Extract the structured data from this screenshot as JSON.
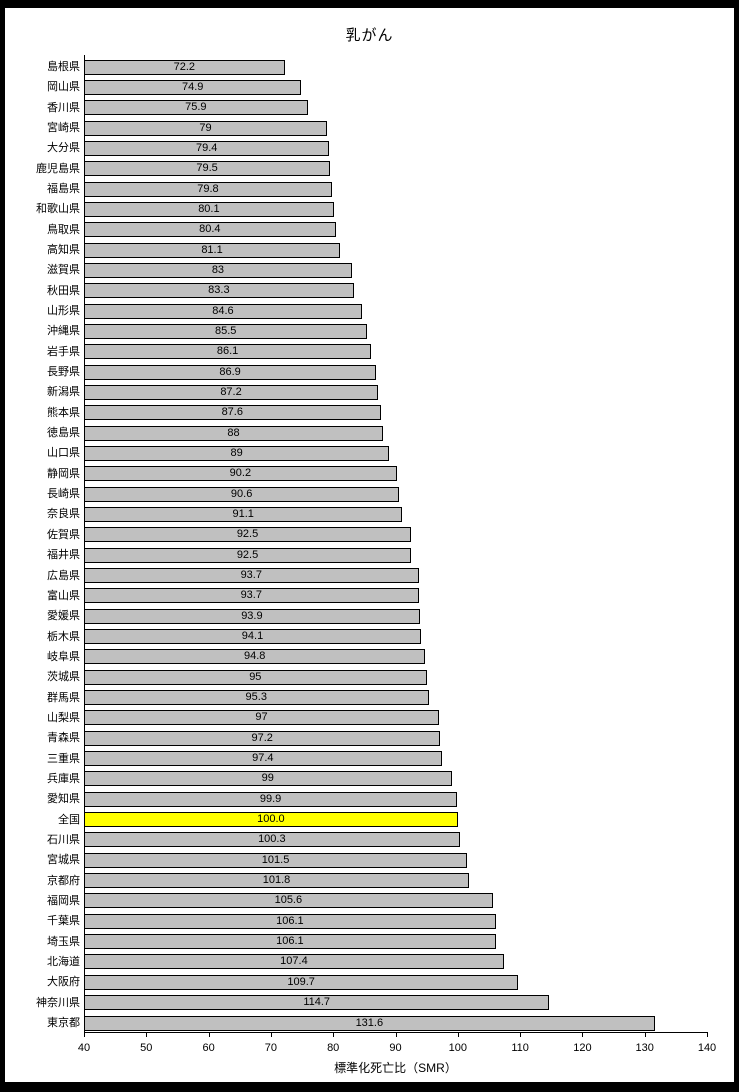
{
  "chart_data": {
    "type": "bar",
    "orientation": "horizontal",
    "title": "乳がん",
    "xlabel": "標準化死亡比（SMR）",
    "xlim": [
      40,
      140
    ],
    "xticks": [
      40,
      50,
      60,
      70,
      80,
      90,
      100,
      110,
      120,
      130,
      140
    ],
    "grid": "off",
    "legend": "none",
    "bar_color": "#c0c0c0",
    "highlight_color": "#ffff00",
    "highlight_category": "全国",
    "highlight_index": 37,
    "categories": [
      "島根県",
      "岡山県",
      "香川県",
      "宮崎県",
      "大分県",
      "鹿児島県",
      "福島県",
      "和歌山県",
      "鳥取県",
      "高知県",
      "滋賀県",
      "秋田県",
      "山形県",
      "沖縄県",
      "岩手県",
      "長野県",
      "新潟県",
      "熊本県",
      "徳島県",
      "山口県",
      "静岡県",
      "長崎県",
      "奈良県",
      "佐賀県",
      "福井県",
      "広島県",
      "富山県",
      "愛媛県",
      "栃木県",
      "岐阜県",
      "茨城県",
      "群馬県",
      "山梨県",
      "青森県",
      "三重県",
      "兵庫県",
      "愛知県",
      "全国",
      "石川県",
      "宮城県",
      "京都府",
      "福岡県",
      "千葉県",
      "埼玉県",
      "北海道",
      "大阪府",
      "神奈川県",
      "東京都"
    ],
    "values": [
      72.2,
      74.9,
      75.9,
      79,
      79.4,
      79.5,
      79.8,
      80.1,
      80.4,
      81.1,
      83,
      83.3,
      84.6,
      85.5,
      86.1,
      86.9,
      87.2,
      87.6,
      88,
      89,
      90.2,
      90.6,
      91.1,
      92.5,
      92.5,
      93.7,
      93.7,
      93.9,
      94.1,
      94.8,
      95,
      95.3,
      97,
      97.2,
      97.4,
      99,
      99.9,
      100.0,
      100.3,
      101.5,
      101.8,
      105.6,
      106.1,
      106.1,
      107.4,
      109.7,
      114.7,
      131.6
    ],
    "value_labels": [
      "72.2",
      "74.9",
      "75.9",
      "79",
      "79.4",
      "79.5",
      "79.8",
      "80.1",
      "80.4",
      "81.1",
      "83",
      "83.3",
      "84.6",
      "85.5",
      "86.1",
      "86.9",
      "87.2",
      "87.6",
      "88",
      "89",
      "90.2",
      "90.6",
      "91.1",
      "92.5",
      "92.5",
      "93.7",
      "93.7",
      "93.9",
      "94.1",
      "94.8",
      "95",
      "95.3",
      "97",
      "97.2",
      "97.4",
      "99",
      "99.9",
      "100.0",
      "100.3",
      "101.5",
      "101.8",
      "105.6",
      "106.1",
      "106.1",
      "107.4",
      "109.7",
      "114.7",
      "131.6"
    ]
  }
}
